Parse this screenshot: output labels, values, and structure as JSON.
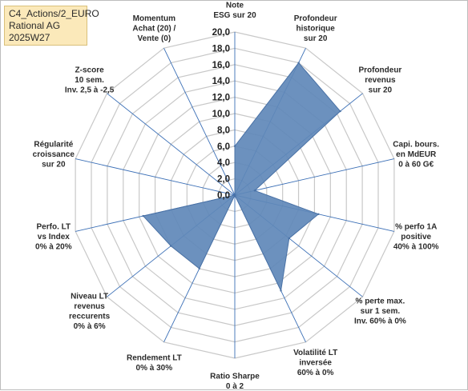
{
  "info": {
    "line1": "C4_Actions/2_EURO",
    "line2": "Rational AG",
    "line3": "2025W27"
  },
  "colors": {
    "fill": "#5f88b9",
    "stroke": "#4a72a6",
    "grid": "#c8c8c8",
    "spoke": "#3b6fb6",
    "info_bg": "#fbe9ba"
  },
  "chart_data": {
    "type": "radar",
    "rlim": [
      0,
      20
    ],
    "ticks": [
      "0,0",
      "2,0",
      "4,0",
      "6,0",
      "8,0",
      "10,0",
      "12,0",
      "14,0",
      "16,0",
      "18,0",
      "20,0"
    ],
    "grid": true,
    "axes": [
      {
        "label": [
          "Note",
          "ESG sur 20"
        ],
        "value": 6.0
      },
      {
        "label": [
          "Profondeur",
          "historique",
          "sur 20"
        ],
        "value": 18.0
      },
      {
        "label": [
          "Profondeur",
          "revenus",
          "sur 20"
        ],
        "value": 16.5
      },
      {
        "label": [
          "Capi. bours.",
          "en MdEUR",
          "0 à 60 G€"
        ],
        "value": 2.5
      },
      {
        "label": [
          "% perfo 1A",
          "positive",
          "40% à 100%"
        ],
        "value": 10.5
      },
      {
        "label": [
          "% perte max.",
          "sur 1 sem.",
          "Inv. 60% à 0%"
        ],
        "value": 8.5
      },
      {
        "label": [
          "Volatilité LT",
          "inversée",
          "60% à 0%"
        ],
        "value": 13.0
      },
      {
        "label": [
          "Ratio Sharpe",
          "0 à 2"
        ],
        "value": 0.0
      },
      {
        "label": [
          "Rendement LT",
          "0% à 30%"
        ],
        "value": 10.0
      },
      {
        "label": [
          "Niveau LT",
          "revenus",
          "reccurents",
          "0% à 6%"
        ],
        "value": 10.0
      },
      {
        "label": [
          "Perfo. LT",
          "vs Index",
          "0% à 20%"
        ],
        "value": 11.5
      },
      {
        "label": [
          "Régularité",
          "croissance",
          "sur 20"
        ],
        "value": 0.0
      },
      {
        "label": [
          "Z-score",
          "10 sem.",
          "Inv. 2,5 à -2,5"
        ],
        "value": 0.0
      },
      {
        "label": [
          "Momentum",
          "Achat (20) /",
          "Vente (0)"
        ],
        "value": 0.0
      }
    ]
  }
}
